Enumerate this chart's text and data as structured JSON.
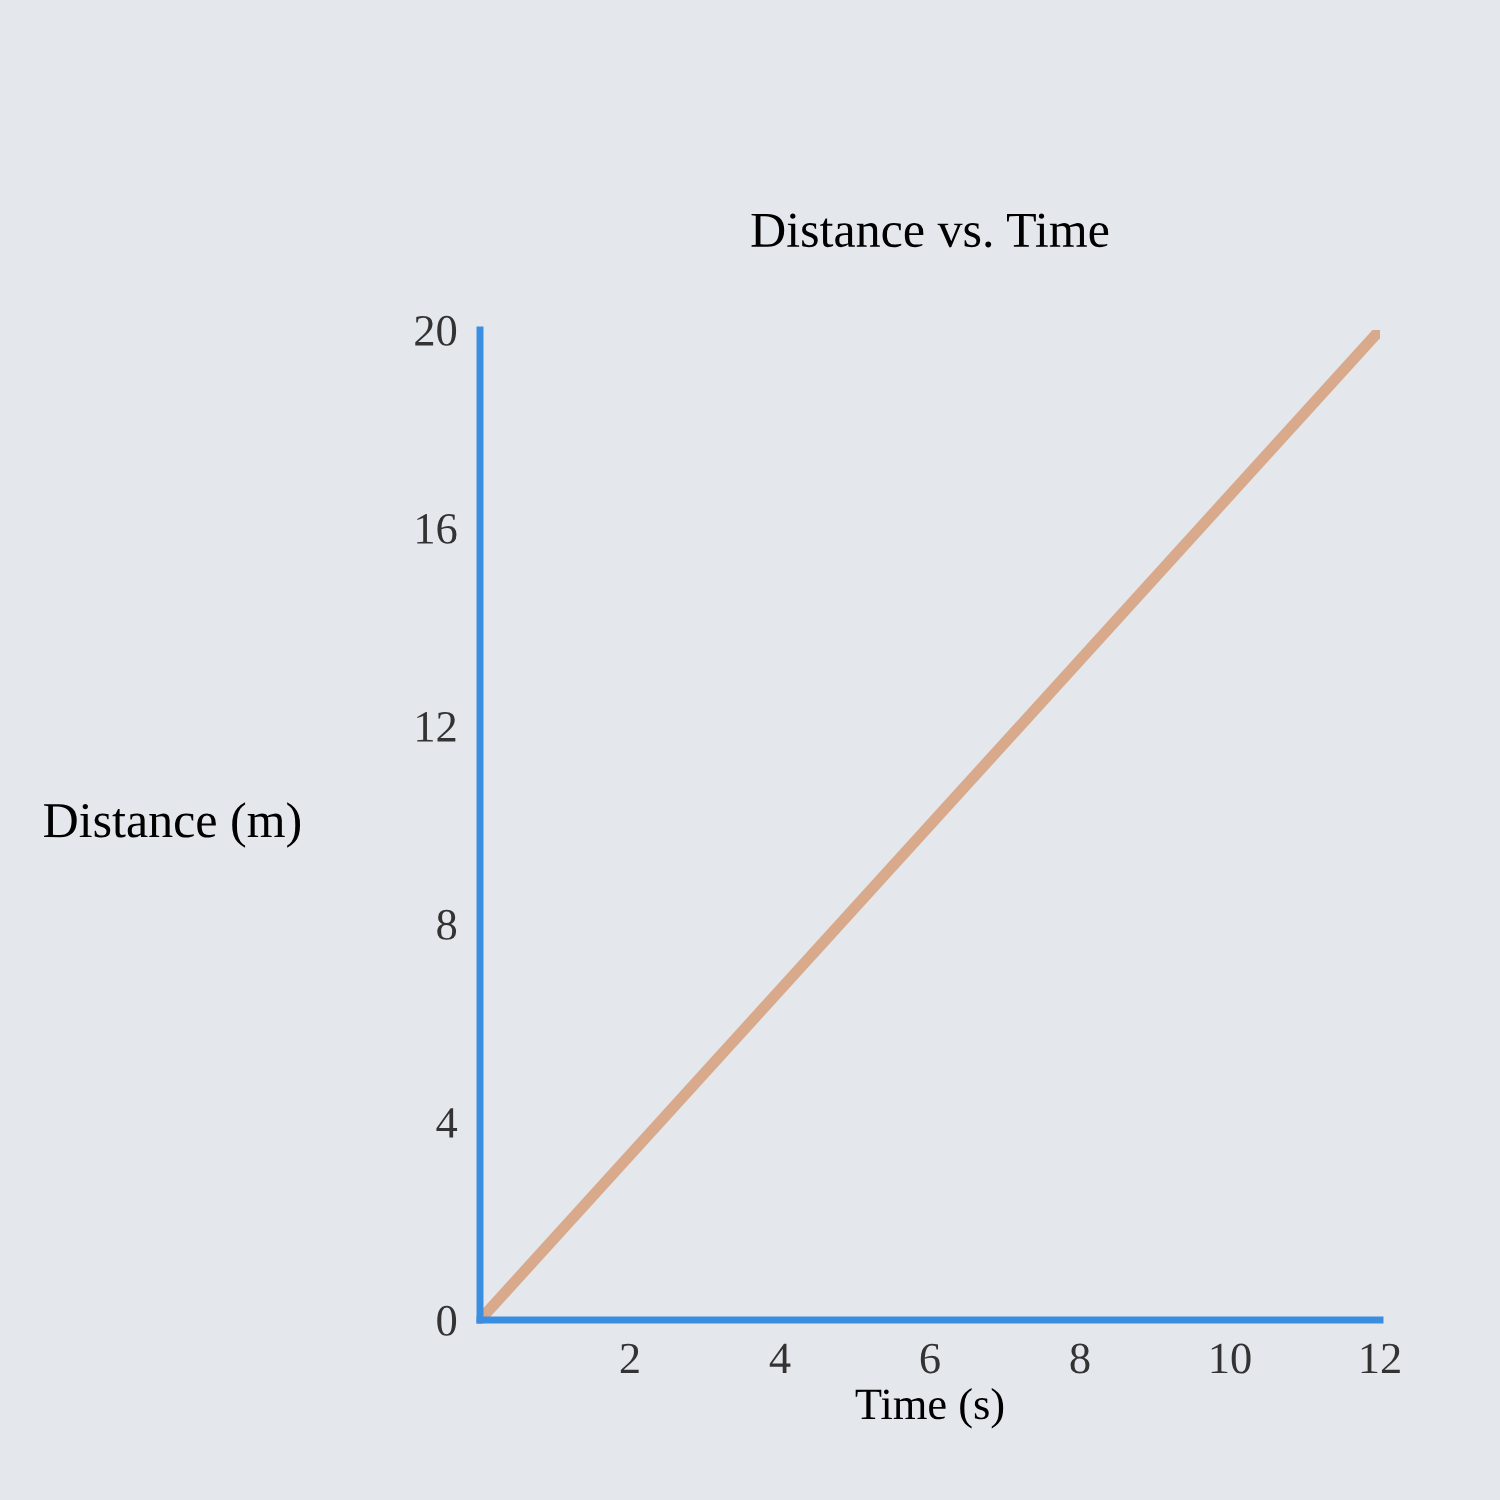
{
  "chart_data": {
    "type": "line",
    "title": "Distance vs. Time",
    "xlabel": "Time (s)",
    "ylabel": "Distance (m)",
    "x": [
      0,
      12
    ],
    "series": [
      {
        "color": "#d9a98c",
        "values": [
          0,
          20
        ]
      }
    ],
    "xlim": [
      0,
      12
    ],
    "ylim": [
      0,
      20
    ],
    "xticks": [
      2,
      4,
      6,
      8,
      10,
      12
    ],
    "yticks": [
      0,
      4,
      8,
      12,
      16,
      20
    ],
    "grid": false,
    "legend": false,
    "marker": "none",
    "line_style": "solid"
  }
}
